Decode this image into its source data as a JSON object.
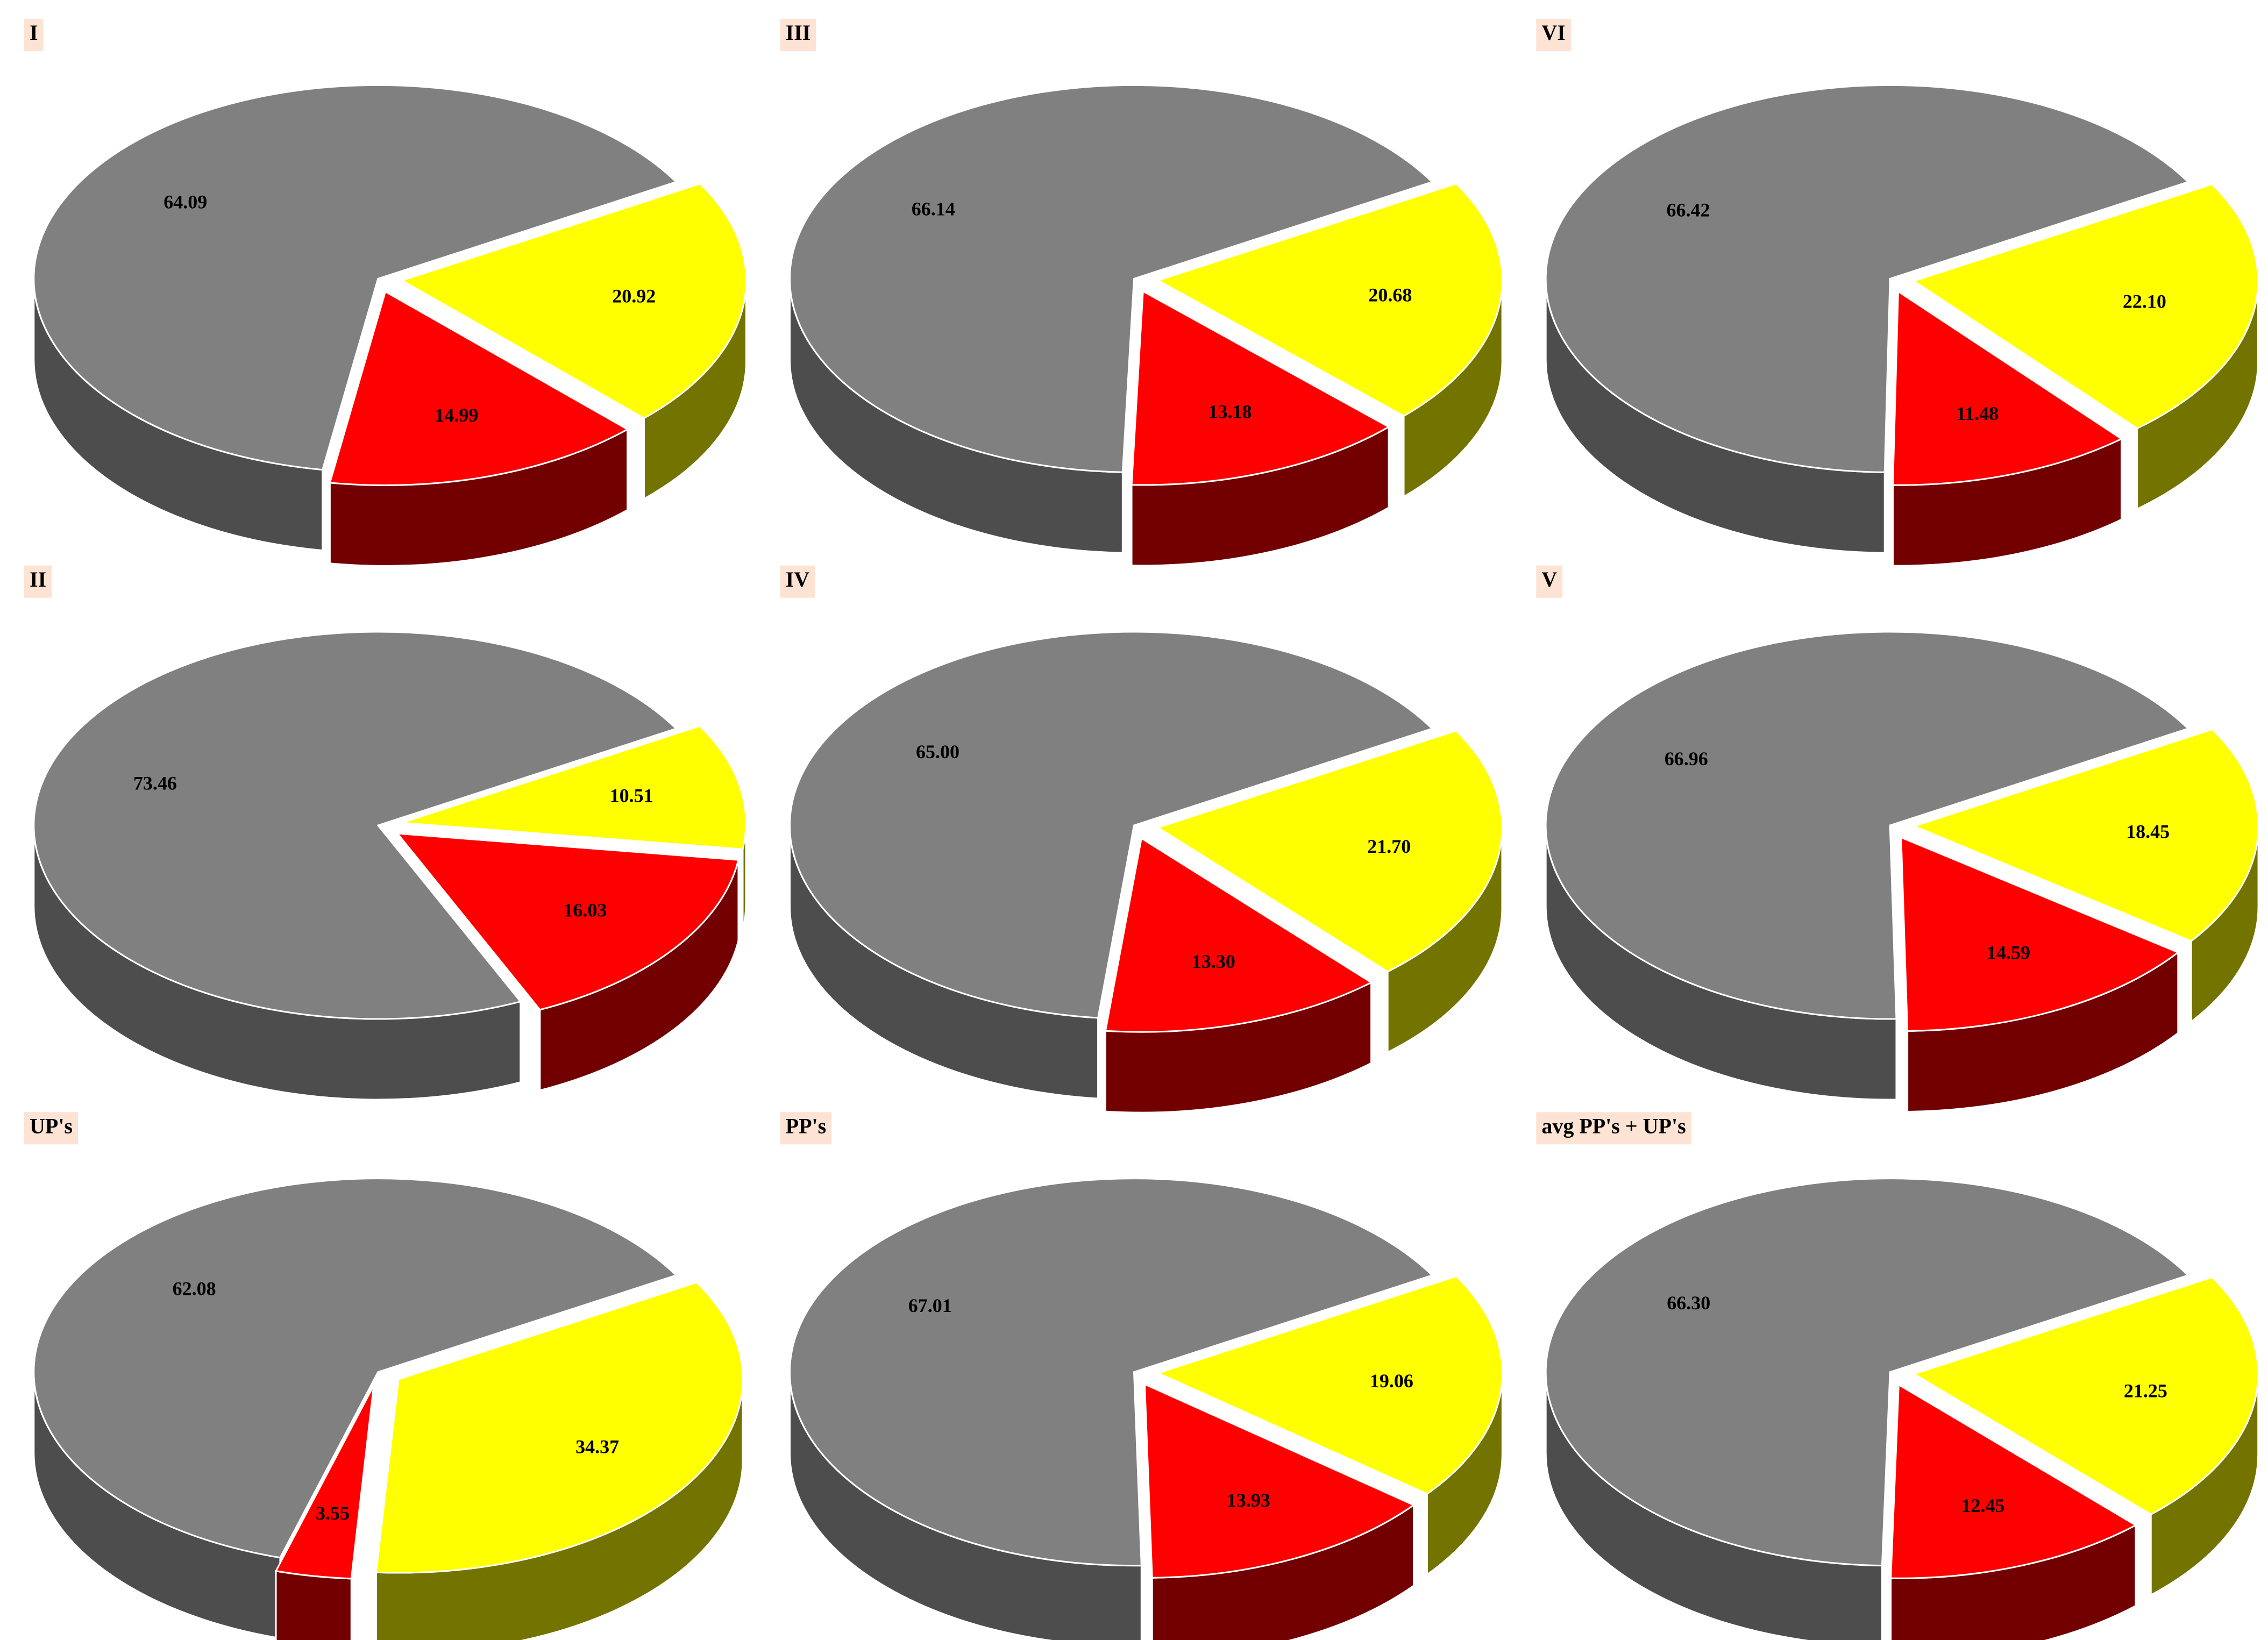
{
  "chart_data": [
    {
      "type": "pie",
      "title": "I",
      "values": [
        20.92,
        14.99,
        64.09
      ],
      "value_labels": [
        "20.92",
        "14.99",
        "64.09"
      ],
      "colors": [
        "#ffff00",
        "#ff0000",
        "#808080"
      ]
    },
    {
      "type": "pie",
      "title": "III",
      "values": [
        20.68,
        13.18,
        66.14
      ],
      "value_labels": [
        "20.68",
        "13.18",
        "66.14"
      ],
      "colors": [
        "#ffff00",
        "#ff0000",
        "#808080"
      ]
    },
    {
      "type": "pie",
      "title": "VI",
      "values": [
        22.1,
        11.48,
        66.42
      ],
      "value_labels": [
        "22.10",
        "11.48",
        "66.42"
      ],
      "colors": [
        "#ffff00",
        "#ff0000",
        "#808080"
      ]
    },
    {
      "type": "pie",
      "title": "II",
      "values": [
        10.51,
        16.03,
        73.46
      ],
      "value_labels": [
        "10.51",
        "16.03",
        "73.46"
      ],
      "colors": [
        "#ffff00",
        "#ff0000",
        "#808080"
      ]
    },
    {
      "type": "pie",
      "title": "IV",
      "values": [
        21.7,
        13.3,
        65.0
      ],
      "value_labels": [
        "21.70",
        "13.30",
        "65.00"
      ],
      "colors": [
        "#ffff00",
        "#ff0000",
        "#808080"
      ]
    },
    {
      "type": "pie",
      "title": "V",
      "values": [
        18.45,
        14.59,
        66.96
      ],
      "value_labels": [
        "18.45",
        "14.59",
        "66.96"
      ],
      "colors": [
        "#ffff00",
        "#ff0000",
        "#808080"
      ]
    },
    {
      "type": "pie",
      "title": "UP's",
      "values": [
        34.37,
        3.55,
        62.08
      ],
      "value_labels": [
        "34.37",
        "3.55",
        "62.08"
      ],
      "colors": [
        "#ffff00",
        "#ff0000",
        "#808080"
      ]
    },
    {
      "type": "pie",
      "title": "PP's",
      "values": [
        19.06,
        13.93,
        67.01
      ],
      "value_labels": [
        "19.06",
        "13.93",
        "67.01"
      ],
      "colors": [
        "#ffff00",
        "#ff0000",
        "#808080"
      ]
    },
    {
      "type": "pie",
      "title": "avg PP's + UP's",
      "values": [
        21.25,
        12.45,
        66.3
      ],
      "value_labels": [
        "21.25",
        "12.45",
        "66.30"
      ],
      "colors": [
        "#ffff00",
        "#ff0000",
        "#808080"
      ]
    }
  ]
}
